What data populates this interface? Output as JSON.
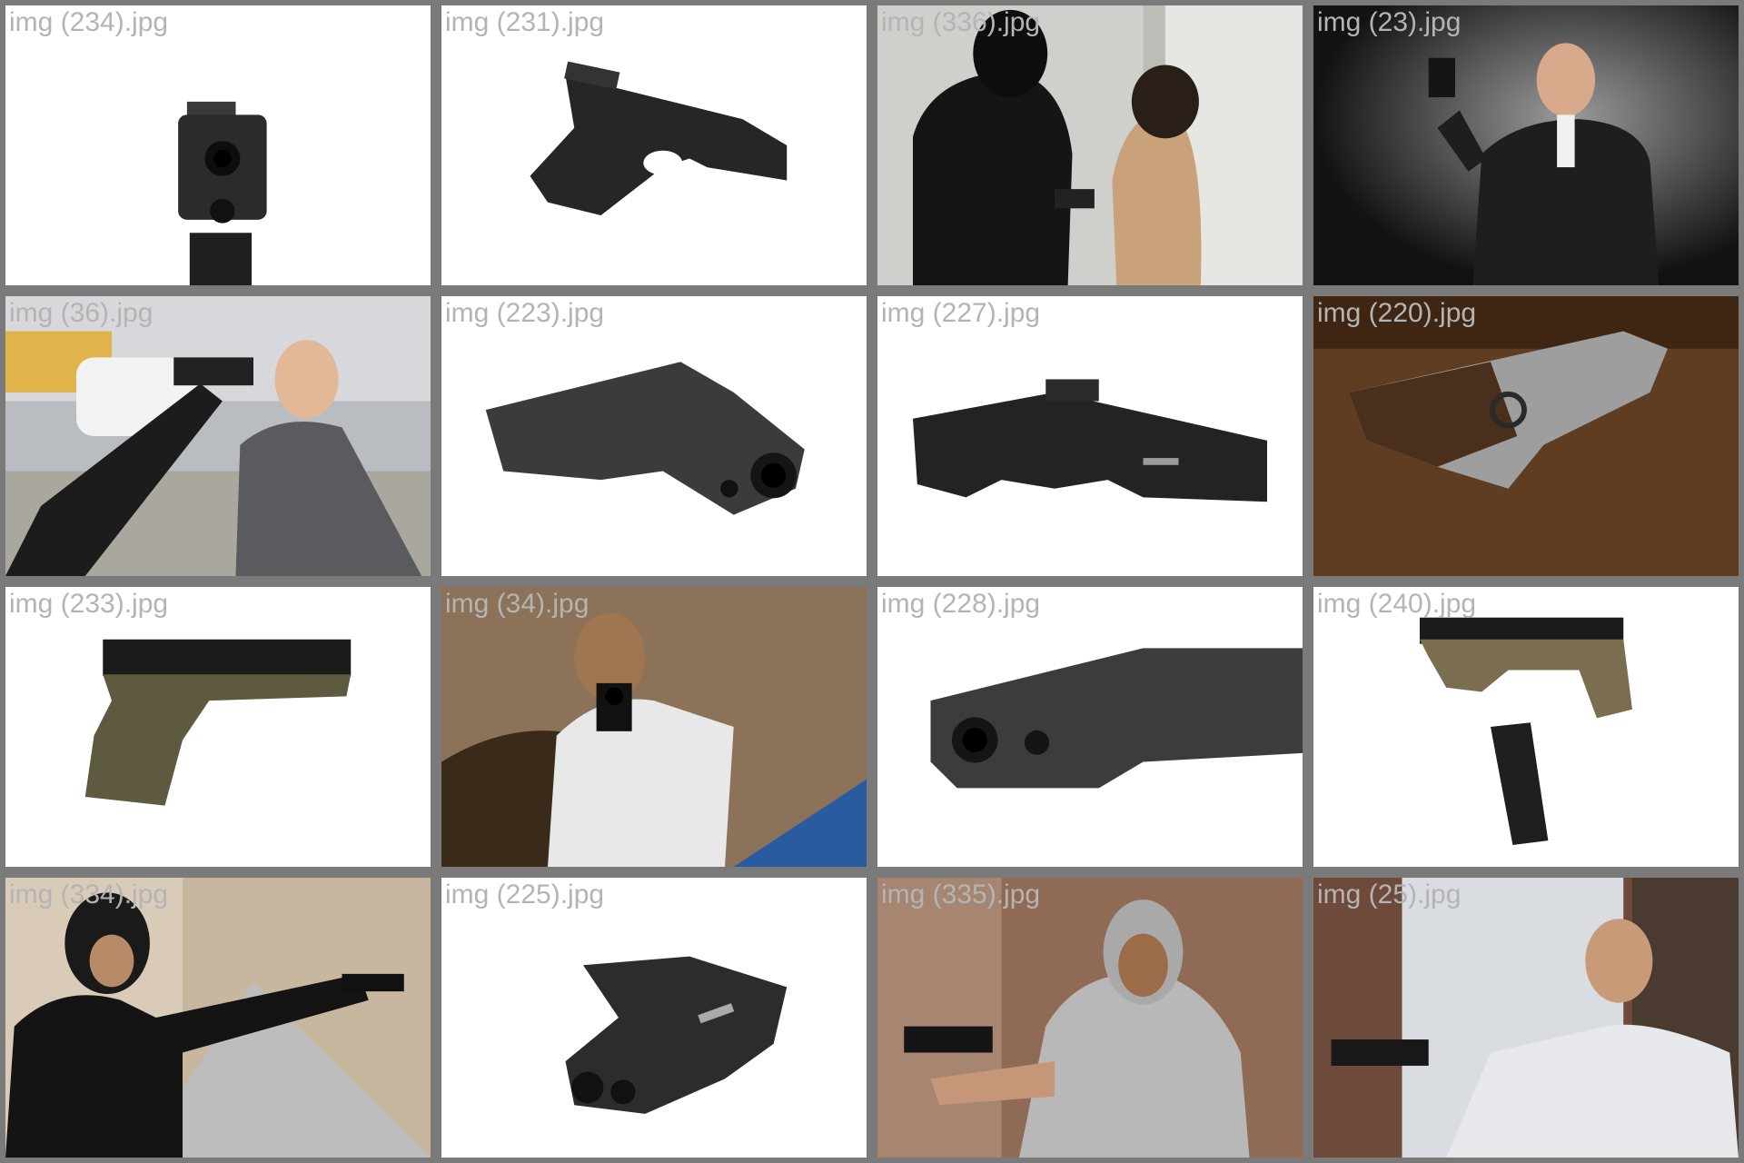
{
  "gallery": {
    "tiles": [
      {
        "caption": "img (234).jpg",
        "scene": "pistol-front-white"
      },
      {
        "caption": "img (231).jpg",
        "scene": "pistol-side-white"
      },
      {
        "caption": "img (336).jpg",
        "scene": "masked-robber-with-woman"
      },
      {
        "caption": "img (23).jpg",
        "scene": "man-in-suit-raised-pistol"
      },
      {
        "caption": "img (36).jpg",
        "scene": "pistol-aimed-at-man"
      },
      {
        "caption": "img (223).jpg",
        "scene": "pistol-angled-muzzle-white"
      },
      {
        "caption": "img (227).jpg",
        "scene": "pistol-side-white"
      },
      {
        "caption": "img (220).jpg",
        "scene": "pistol-on-wood-table"
      },
      {
        "caption": "img (233).jpg",
        "scene": "olive-pistol-side-white"
      },
      {
        "caption": "img (34).jpg",
        "scene": "man-aiming-from-car"
      },
      {
        "caption": "img (228).jpg",
        "scene": "pistol-closeup-muzzle-white"
      },
      {
        "caption": "img (240).jpg",
        "scene": "olive-pistol-with-magazine"
      },
      {
        "caption": "img (334).jpg",
        "scene": "hooded-man-aiming-street"
      },
      {
        "caption": "img (225).jpg",
        "scene": "pistol-top-white"
      },
      {
        "caption": "img (335).jpg",
        "scene": "hooded-man-aiming-brick-wall"
      },
      {
        "caption": "img (25).jpg",
        "scene": "businessman-aiming-pistol"
      }
    ]
  }
}
